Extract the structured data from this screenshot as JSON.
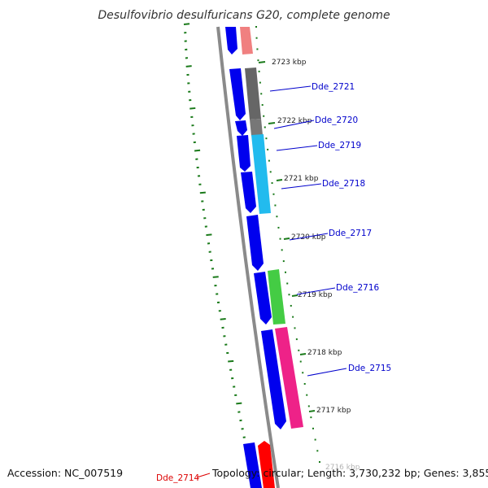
{
  "title": "Desulfovibrio desulfuricans G20, complete genome",
  "accession_label": "Accession: NC_007519",
  "summary_label": "Topology: circular; Length: 3,730,232 bp; Genes: 3,855",
  "colors": {
    "backbone": "#8a8a8a",
    "forward_genes": "#0000ee",
    "tick": "#1a7a1a",
    "label": "#0000cc",
    "highlight_label": "#dd0000"
  },
  "kbp_marks": [
    "2723 kbp",
    "2722 kbp",
    "2721 kbp",
    "2720 kbp",
    "2719 kbp",
    "2718 kbp",
    "2717 kbp",
    "2716 kbp"
  ],
  "gene_labels": [
    {
      "text": "Dde_2721",
      "color": "#0000cc"
    },
    {
      "text": "Dde_2720",
      "color": "#0000cc"
    },
    {
      "text": "Dde_2719",
      "color": "#0000cc"
    },
    {
      "text": "Dde_2718",
      "color": "#0000cc"
    },
    {
      "text": "Dde_2717",
      "color": "#0000cc"
    },
    {
      "text": "Dde_2716",
      "color": "#0000cc"
    },
    {
      "text": "Dde_2715",
      "color": "#0000cc"
    },
    {
      "text": "Dde_2714",
      "color": "#dd0000"
    }
  ],
  "reverse_gene_colors": [
    "#f08080",
    "#666666",
    "#777777",
    "#22bbee",
    "#44cc44",
    "#ee2288",
    "#ff0000"
  ]
}
